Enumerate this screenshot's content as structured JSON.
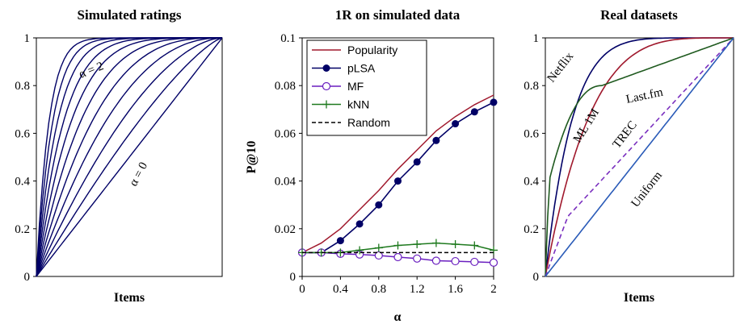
{
  "chart_data": [
    {
      "type": "line",
      "title": "Simulated ratings",
      "xlabel": "Items",
      "ylabel": "",
      "ylim": [
        0,
        1
      ],
      "yticks": [
        "0",
        "0.2",
        "0.4",
        "0.6",
        "0.8",
        "1"
      ],
      "alphas": [
        0,
        0.2,
        0.4,
        0.6,
        0.8,
        1.0,
        1.2,
        1.4,
        1.6,
        1.8,
        2.0
      ],
      "annotations": [
        {
          "text": "α = 2"
        },
        {
          "text": "α = 0"
        }
      ],
      "color": "#000066"
    },
    {
      "type": "line",
      "title": "1R on simulated data",
      "xlabel": "α",
      "ylabel": "P@10",
      "xlim": [
        0,
        2
      ],
      "ylim": [
        0,
        0.1
      ],
      "xticks": [
        "0",
        "0.4",
        "0.8",
        "1.2",
        "1.6",
        "2"
      ],
      "yticks": [
        "0",
        "0.02",
        "0.04",
        "0.06",
        "0.08",
        "0.1"
      ],
      "x": [
        0,
        0.2,
        0.4,
        0.6,
        0.8,
        1.0,
        1.2,
        1.4,
        1.6,
        1.8,
        2.0
      ],
      "series": [
        {
          "name": "Popularity",
          "color": "#a0192d",
          "marker": "none",
          "values": [
            0.01,
            0.014,
            0.02,
            0.028,
            0.036,
            0.045,
            0.053,
            0.061,
            0.067,
            0.072,
            0.076
          ]
        },
        {
          "name": "pLSA",
          "color": "#000066",
          "marker": "filled-circle",
          "values": [
            0.01,
            0.01,
            0.015,
            0.022,
            0.03,
            0.04,
            0.048,
            0.057,
            0.064,
            0.069,
            0.073
          ]
        },
        {
          "name": "MF",
          "color": "#6a1fbf",
          "marker": "open-circle",
          "values": [
            0.01,
            0.01,
            0.0095,
            0.0092,
            0.0088,
            0.0081,
            0.0075,
            0.0066,
            0.0064,
            0.0061,
            0.0058
          ]
        },
        {
          "name": "kNN",
          "color": "#1f7a1f",
          "marker": "plus",
          "values": [
            0.01,
            0.01,
            0.01,
            0.011,
            0.012,
            0.013,
            0.0135,
            0.014,
            0.0135,
            0.013,
            0.011
          ]
        },
        {
          "name": "Random",
          "color": "#000000",
          "marker": "none",
          "dash": true,
          "values": [
            0.01,
            0.01,
            0.01,
            0.01,
            0.01,
            0.01,
            0.01,
            0.01,
            0.01,
            0.01,
            0.01
          ]
        }
      ],
      "legend": "top-left"
    },
    {
      "type": "line",
      "title": "Real datasets",
      "xlabel": "Items",
      "ylabel": "",
      "ylim": [
        0,
        1
      ],
      "yticks": [
        "0",
        "0.2",
        "0.4",
        "0.6",
        "0.8",
        "1"
      ],
      "series": [
        {
          "label": "Netflix",
          "color": "#000066"
        },
        {
          "label": "ML 1M",
          "color": "#a0192d"
        },
        {
          "label": "Last.fm",
          "color": "#1f5a1f"
        },
        {
          "label": "TREC",
          "color": "#7a2fbf",
          "dash": true
        },
        {
          "label": "Uniform",
          "color": "#2a5bb8"
        }
      ]
    }
  ]
}
